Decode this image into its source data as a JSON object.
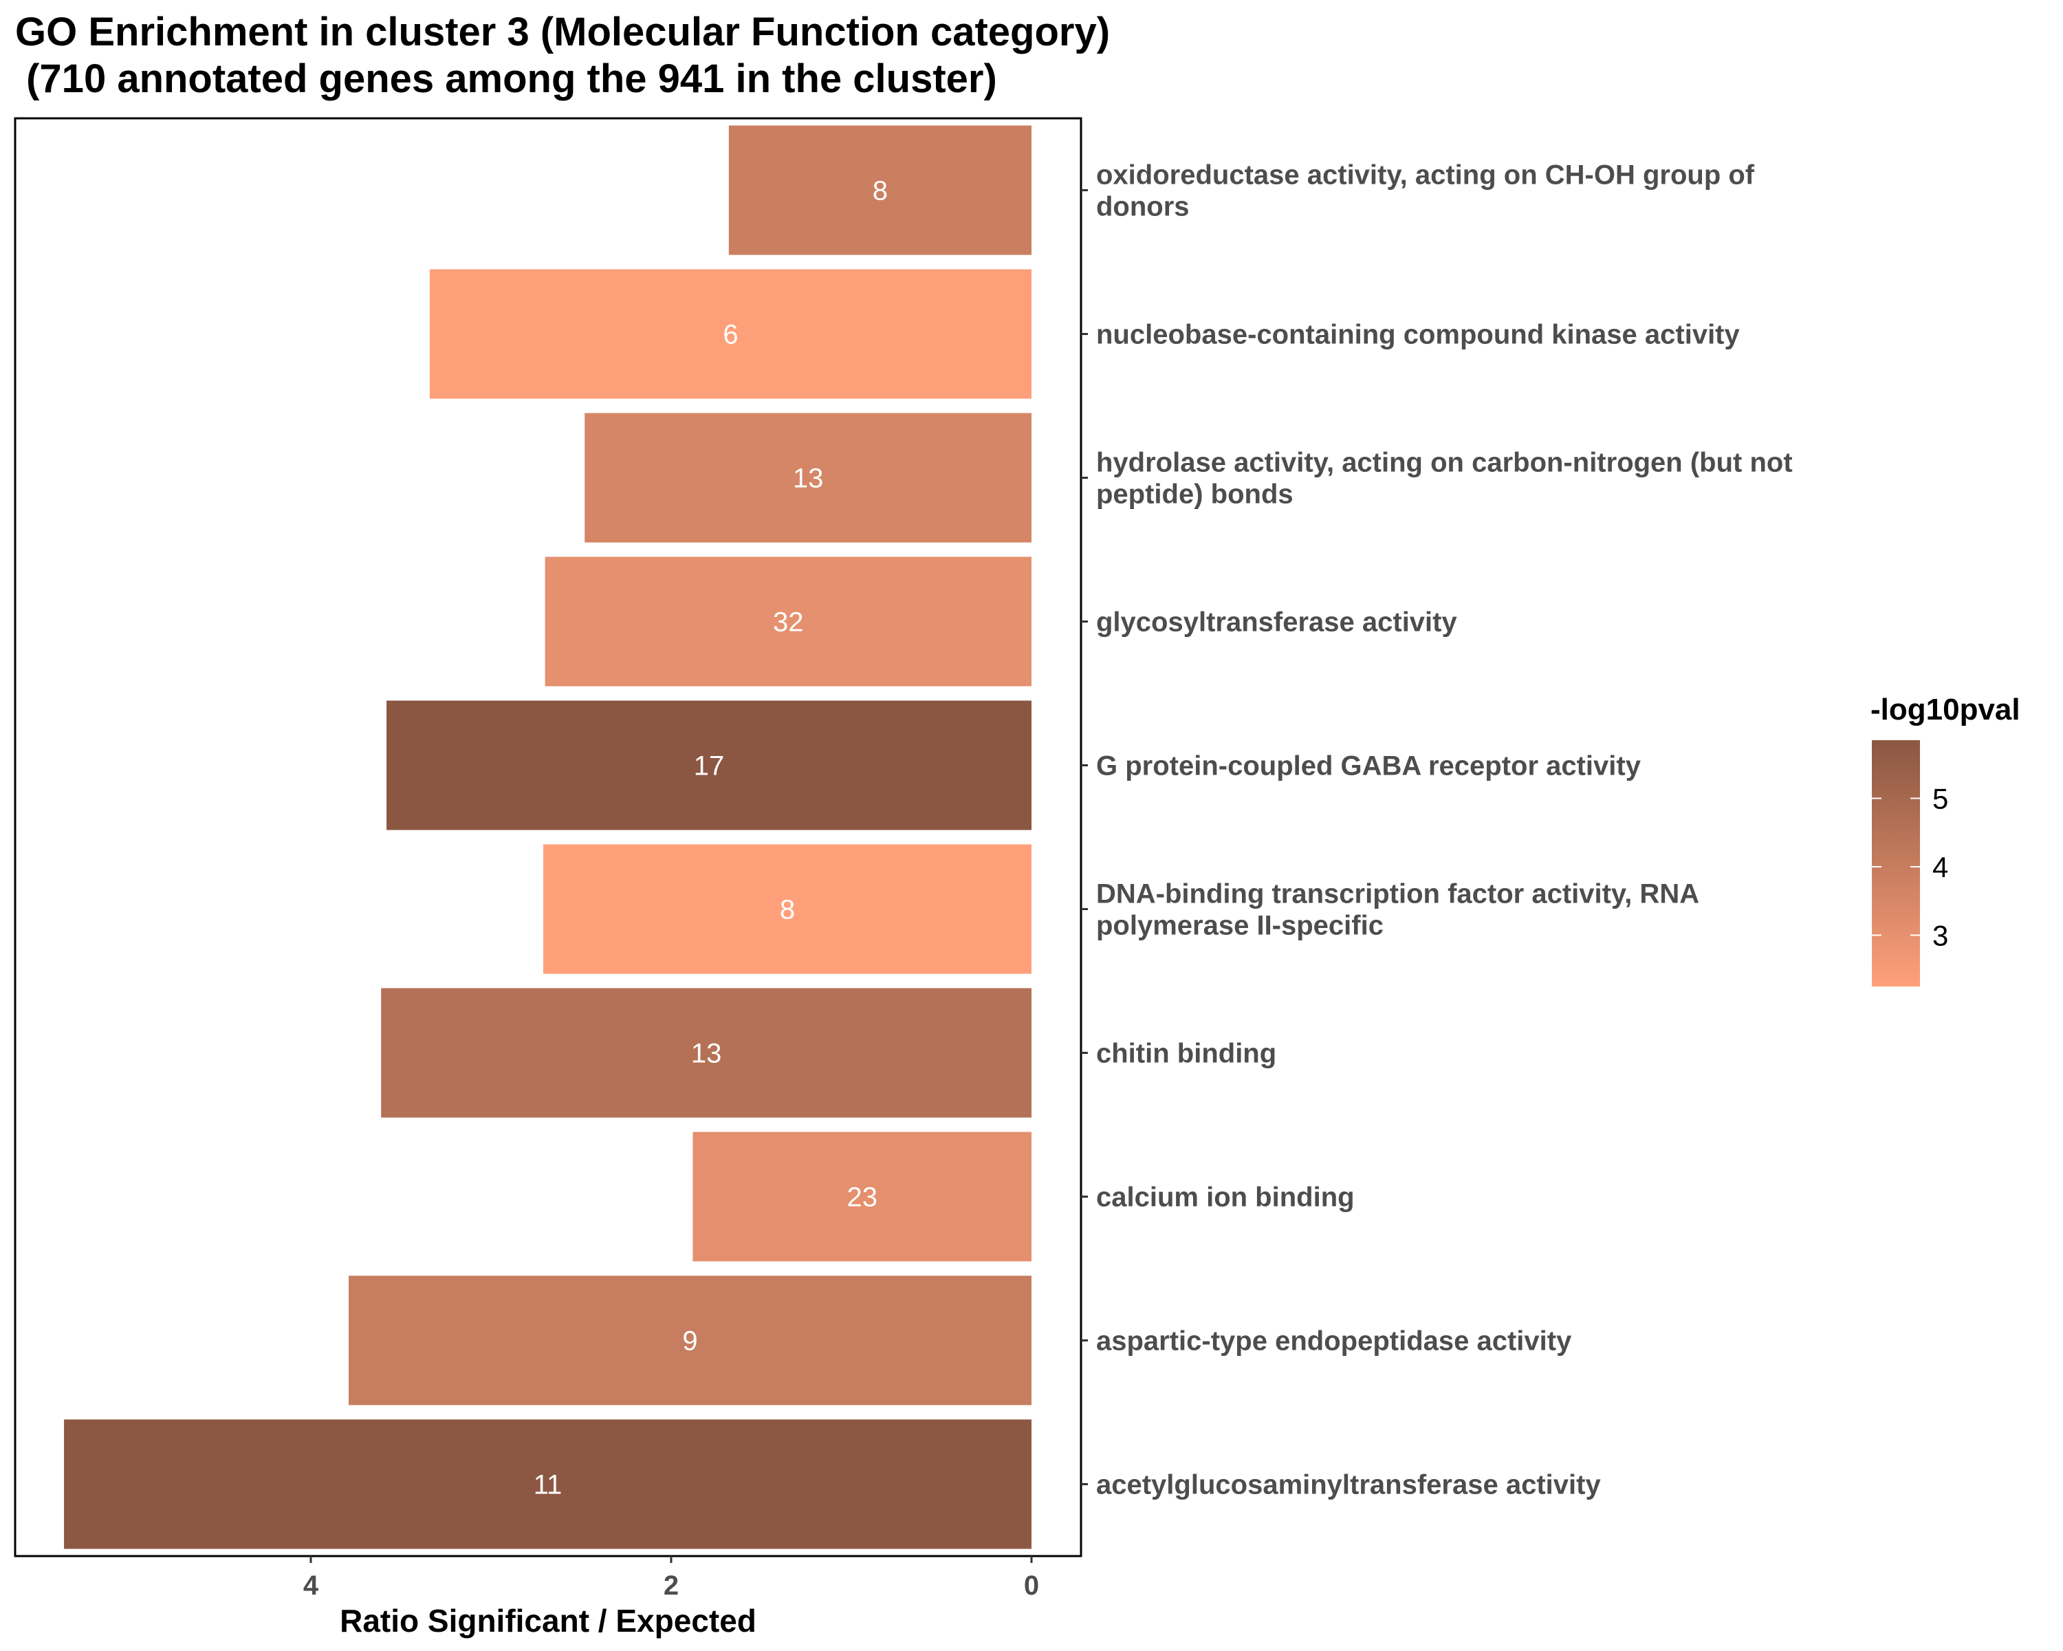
{
  "chart_data": {
    "type": "bar",
    "orientation": "horizontal",
    "title": "GO Enrichment in cluster 3 (Molecular Function category)\n (710 annotated genes among the 941 in the cluster)",
    "xlabel": "Ratio Significant / Expected",
    "ylabel": "",
    "x_reversed": true,
    "xlim": [
      5.55,
      -0.28
    ],
    "x_ticks": [
      4,
      2,
      0
    ],
    "grid": false,
    "legend_position": "right",
    "legend": {
      "title": "-log10pval",
      "min": 2.25,
      "max": 5.85,
      "ticks": [
        5,
        4,
        3
      ],
      "color_low": "#FFA07A",
      "color_high": "#8B5742"
    },
    "categories": [
      "oxidoreductase activity, acting on CH-OH group of donors",
      "nucleobase-containing compound kinase activity",
      "hydrolase activity, acting on carbon-nitrogen (but not peptide) bonds",
      "glycosyltransferase activity",
      "G protein-coupled GABA receptor activity",
      "DNA-binding transcription factor activity, RNA polymerase II-specific",
      "chitin binding",
      "calcium ion binding",
      "aspartic-type endopeptidase activity",
      "acetylglucosaminyltransferase activity"
    ],
    "category_lines": [
      [
        "oxidoreductase activity, acting on CH-OH group of",
        "donors"
      ],
      [
        "nucleobase-containing compound kinase activity"
      ],
      [
        "hydrolase activity, acting on carbon-nitrogen (but not",
        "peptide) bonds"
      ],
      [
        "glycosyltransferase activity"
      ],
      [
        "G protein-coupled GABA receptor activity"
      ],
      [
        "DNA-binding transcription factor activity, RNA",
        "polymerase II-specific"
      ],
      [
        "chitin binding"
      ],
      [
        "calcium ion binding"
      ],
      [
        "aspartic-type endopeptidase activity"
      ],
      [
        "acetylglucosaminyltransferase activity"
      ]
    ],
    "values": [
      1.68,
      3.34,
      2.48,
      2.7,
      3.58,
      2.71,
      3.61,
      1.88,
      3.79,
      5.37
    ],
    "neglog10pval": [
      3.9,
      2.3,
      3.55,
      3.05,
      5.85,
      2.25,
      4.55,
      3.1,
      4.0,
      5.8
    ],
    "bar_labels": [
      "8",
      "6",
      "13",
      "32",
      "17",
      "8",
      "13",
      "23",
      "9",
      "11"
    ]
  }
}
